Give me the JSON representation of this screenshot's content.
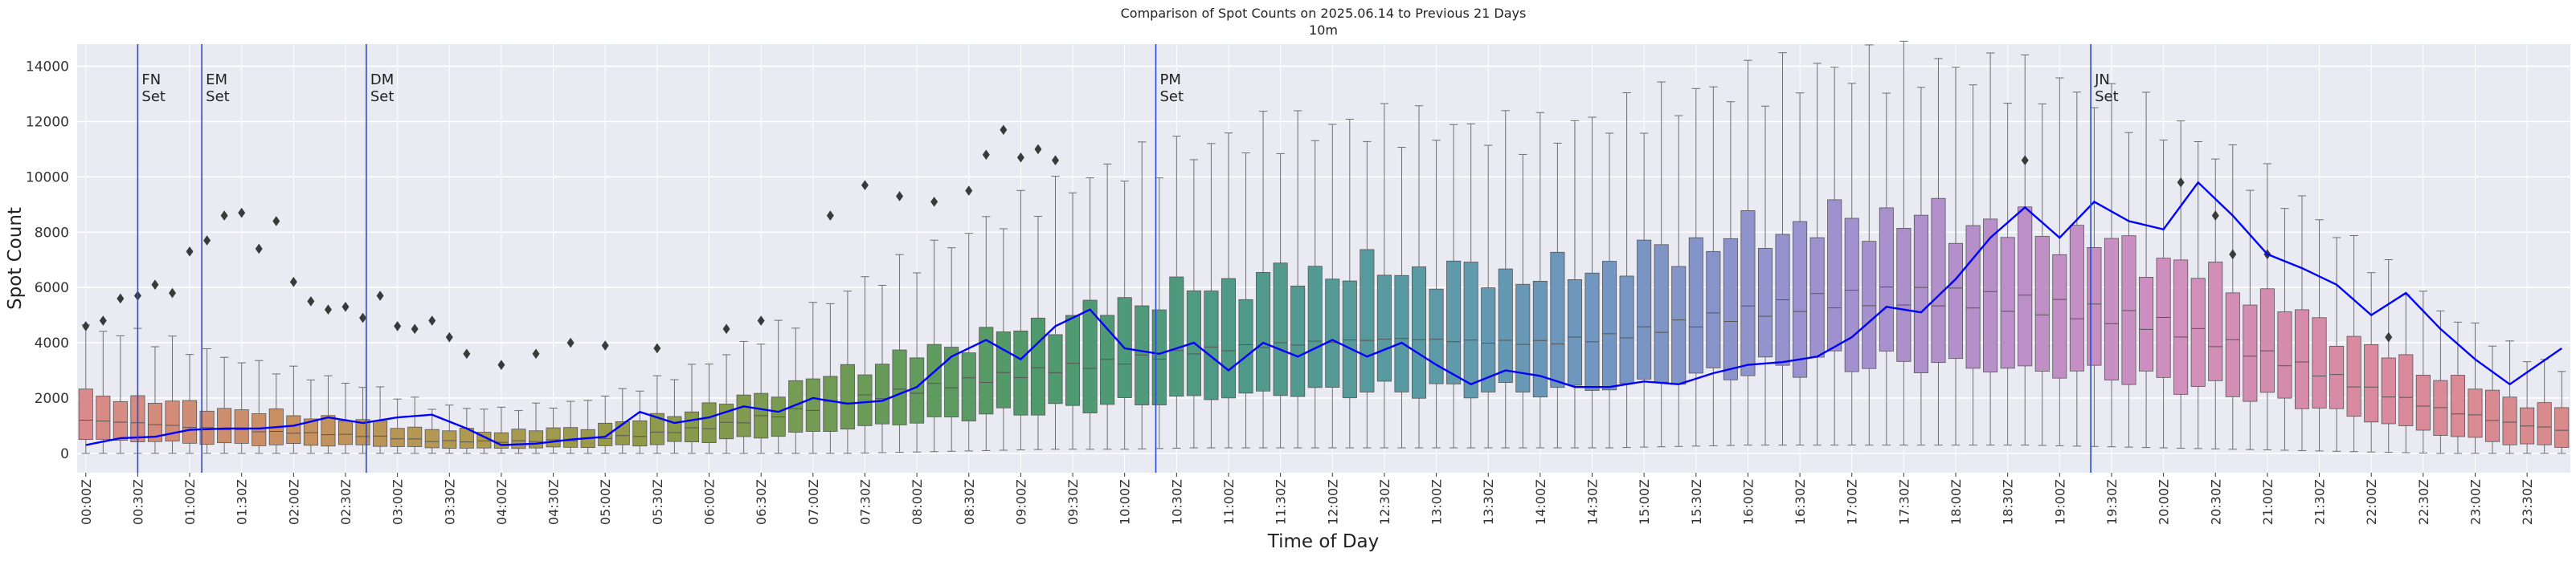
{
  "chart_data": {
    "type": "box",
    "title": "Comparison of Spot Counts on 2025.06.14 to Previous 21 Days",
    "subtitle": "10m",
    "xlabel": "Time of Day",
    "ylabel": "Spot Count",
    "ylim": [
      -700,
      14800
    ],
    "yticks": [
      0,
      2000,
      4000,
      6000,
      8000,
      10000,
      12000,
      14000
    ],
    "ytick_labels": [
      "0",
      "2000",
      "4000",
      "6000",
      "8000",
      "10000",
      "12000",
      "14000"
    ],
    "grid": true,
    "bins_per_day": 144,
    "bin_minutes": 10,
    "xtick_labels": [
      "00:00Z",
      "00:30Z",
      "01:00Z",
      "01:30Z",
      "02:00Z",
      "02:30Z",
      "03:00Z",
      "03:30Z",
      "04:00Z",
      "04:30Z",
      "05:00Z",
      "05:30Z",
      "06:00Z",
      "06:30Z",
      "07:00Z",
      "07:30Z",
      "08:00Z",
      "08:30Z",
      "09:00Z",
      "09:30Z",
      "10:00Z",
      "10:30Z",
      "11:00Z",
      "11:30Z",
      "12:00Z",
      "12:30Z",
      "13:00Z",
      "13:30Z",
      "14:00Z",
      "14:30Z",
      "15:00Z",
      "15:30Z",
      "16:00Z",
      "16:30Z",
      "17:00Z",
      "17:30Z",
      "18:00Z",
      "18:30Z",
      "19:00Z",
      "19:30Z",
      "20:00Z",
      "20:30Z",
      "21:00Z",
      "21:30Z",
      "22:00Z",
      "22:30Z",
      "23:00Z",
      "23:30Z"
    ],
    "box_anchors": {
      "x": [
        0,
        3,
        6,
        10,
        14,
        17,
        20,
        24,
        28,
        32,
        36,
        40,
        44,
        48,
        52,
        56,
        60,
        64,
        68,
        72,
        76,
        80,
        84,
        88,
        92,
        96,
        100,
        104,
        108,
        112,
        116,
        120,
        124,
        128,
        132,
        136,
        140,
        143
      ],
      "q1": [
        500,
        450,
        380,
        320,
        300,
        280,
        200,
        180,
        220,
        300,
        450,
        650,
        900,
        1150,
        1400,
        1600,
        1800,
        2000,
        2150,
        2250,
        2300,
        2300,
        2250,
        2400,
        2700,
        3000,
        3300,
        3300,
        3200,
        3000,
        2900,
        2600,
        2200,
        1800,
        1200,
        700,
        350,
        250
      ],
      "median": [
        1200,
        1100,
        950,
        800,
        700,
        600,
        450,
        420,
        480,
        650,
        950,
        1400,
        1900,
        2300,
        2700,
        3050,
        3350,
        3700,
        3900,
        4050,
        4150,
        4050,
        4000,
        4200,
        4650,
        5100,
        5500,
        5700,
        5650,
        5400,
        5100,
        4650,
        3900,
        3150,
        2300,
        1600,
        1100,
        850
      ],
      "q3": [
        2100,
        2000,
        1750,
        1500,
        1300,
        1100,
        850,
        800,
        900,
        1200,
        1700,
        2300,
        3000,
        3600,
        4200,
        4800,
        5400,
        5900,
        6300,
        6600,
        6600,
        6500,
        6400,
        6800,
        7400,
        7900,
        8300,
        8500,
        8400,
        8100,
        7700,
        7000,
        6100,
        5000,
        3800,
        2800,
        2000,
        1600
      ],
      "whislo": [
        0,
        0,
        0,
        0,
        0,
        0,
        0,
        0,
        0,
        0,
        0,
        0,
        0,
        50,
        100,
        150,
        150,
        200,
        200,
        200,
        200,
        200,
        200,
        200,
        250,
        300,
        300,
        300,
        300,
        300,
        250,
        200,
        150,
        100,
        50,
        0,
        0,
        0
      ],
      "whishi": [
        4500,
        4300,
        3800,
        3200,
        2700,
        2300,
        1700,
        1600,
        1800,
        2400,
        3300,
        4500,
        5900,
        7000,
        8300,
        9500,
        10400,
        11000,
        11600,
        11800,
        11900,
        11700,
        11600,
        12100,
        12800,
        13400,
        13800,
        14000,
        13900,
        13500,
        12900,
        12000,
        10600,
        9000,
        7000,
        5200,
        3800,
        3000
      ]
    },
    "today_series": {
      "name": "2025.06.14",
      "color": "#0000ff",
      "x": [
        0,
        2,
        4,
        6,
        8,
        10,
        12,
        14,
        16,
        18,
        20,
        22,
        24,
        26,
        28,
        30,
        32,
        34,
        36,
        38,
        40,
        42,
        44,
        46,
        48,
        50,
        52,
        54,
        56,
        58,
        60,
        62,
        64,
        66,
        68,
        70,
        72,
        74,
        76,
        78,
        80,
        82,
        84,
        86,
        88,
        90,
        92,
        94,
        96,
        98,
        100,
        102,
        104,
        106,
        108,
        110,
        112,
        114,
        116,
        118,
        120,
        122,
        124,
        126,
        128,
        130,
        132,
        134,
        136,
        138,
        140,
        143
      ],
      "values": [
        300,
        550,
        600,
        850,
        900,
        900,
        1000,
        1300,
        1100,
        1300,
        1400,
        900,
        300,
        350,
        500,
        600,
        1500,
        1100,
        1300,
        1700,
        1500,
        2000,
        1800,
        1900,
        2400,
        3500,
        4100,
        3400,
        4600,
        5200,
        3800,
        3600,
        4000,
        3000,
        4000,
        3500,
        4100,
        3500,
        4000,
        3200,
        2500,
        3000,
        2800,
        2400,
        2400,
        2600,
        2500,
        2900,
        3200,
        3300,
        3500,
        4200,
        5300,
        5100,
        6300,
        7800,
        8900,
        7800,
        9100,
        8400,
        8100,
        9800,
        8600,
        7200,
        6700,
        6100,
        5000,
        5800,
        4500,
        3400,
        2500,
        3800
      ]
    },
    "events": [
      {
        "label": "FN",
        "sub": "Set",
        "x_bin": 3
      },
      {
        "label": "EM",
        "sub": "Set",
        "x_bin": 6.7
      },
      {
        "label": "DM",
        "sub": "Set",
        "x_bin": 16.2
      },
      {
        "label": "PM",
        "sub": "Set",
        "x_bin": 61.8
      },
      {
        "label": "JN",
        "sub": "Set",
        "x_bin": 115.8
      }
    ],
    "outliers": [
      {
        "x": 0,
        "y": 4600
      },
      {
        "x": 1,
        "y": 4800
      },
      {
        "x": 2,
        "y": 5600
      },
      {
        "x": 3,
        "y": 5700
      },
      {
        "x": 4,
        "y": 6100
      },
      {
        "x": 5,
        "y": 5800
      },
      {
        "x": 6,
        "y": 7300
      },
      {
        "x": 7,
        "y": 7700
      },
      {
        "x": 8,
        "y": 8600
      },
      {
        "x": 9,
        "y": 8700
      },
      {
        "x": 10,
        "y": 7400
      },
      {
        "x": 11,
        "y": 8400
      },
      {
        "x": 12,
        "y": 6200
      },
      {
        "x": 13,
        "y": 5500
      },
      {
        "x": 14,
        "y": 5200
      },
      {
        "x": 15,
        "y": 5300
      },
      {
        "x": 16,
        "y": 4900
      },
      {
        "x": 17,
        "y": 5700
      },
      {
        "x": 18,
        "y": 4600
      },
      {
        "x": 19,
        "y": 4500
      },
      {
        "x": 20,
        "y": 4800
      },
      {
        "x": 21,
        "y": 4200
      },
      {
        "x": 22,
        "y": 3600
      },
      {
        "x": 24,
        "y": 3200
      },
      {
        "x": 26,
        "y": 3600
      },
      {
        "x": 28,
        "y": 4000
      },
      {
        "x": 30,
        "y": 3900
      },
      {
        "x": 33,
        "y": 3800
      },
      {
        "x": 37,
        "y": 4500
      },
      {
        "x": 39,
        "y": 4800
      },
      {
        "x": 43,
        "y": 8600
      },
      {
        "x": 45,
        "y": 9700
      },
      {
        "x": 47,
        "y": 9300
      },
      {
        "x": 49,
        "y": 9100
      },
      {
        "x": 51,
        "y": 9500
      },
      {
        "x": 52,
        "y": 10800
      },
      {
        "x": 53,
        "y": 11700
      },
      {
        "x": 54,
        "y": 10700
      },
      {
        "x": 55,
        "y": 11000
      },
      {
        "x": 56,
        "y": 10600
      },
      {
        "x": 112,
        "y": 10600
      },
      {
        "x": 121,
        "y": 9800
      },
      {
        "x": 123,
        "y": 8600
      },
      {
        "x": 124,
        "y": 7200
      },
      {
        "x": 126,
        "y": 7200
      },
      {
        "x": 133,
        "y": 4200
      }
    ],
    "palette": [
      "#d98a8a",
      "#c98f63",
      "#b09a4f",
      "#8f9a4a",
      "#6d9b55",
      "#4f9a6c",
      "#4f9a86",
      "#5a9aa5",
      "#7396c2",
      "#9a92cf",
      "#b98fca",
      "#d18fbd",
      "#d98a9e",
      "#d98a8a"
    ]
  }
}
